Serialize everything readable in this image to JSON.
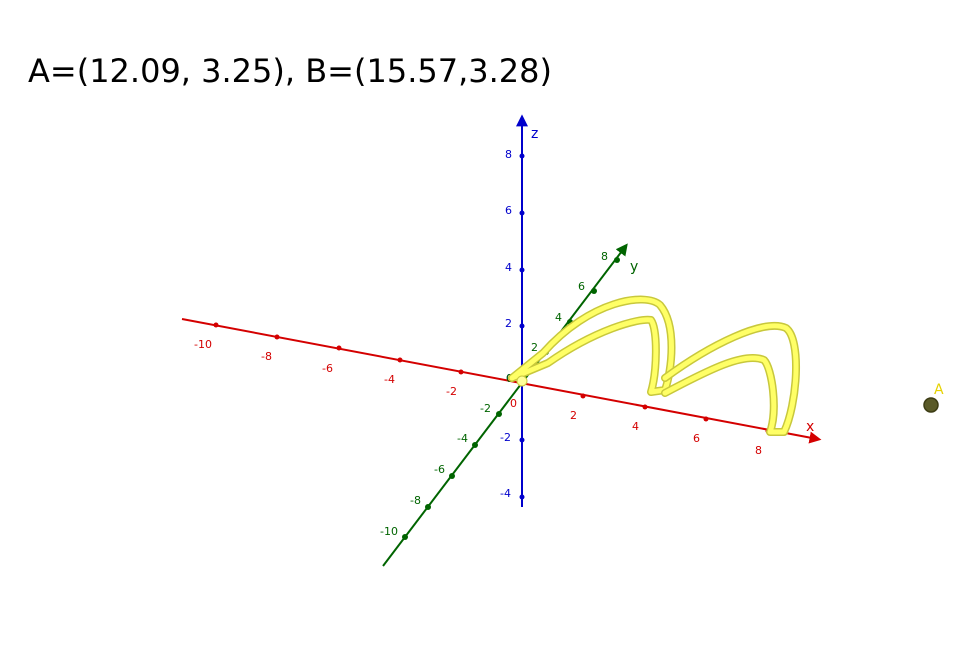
{
  "caption": "A=(12.09, 3.25), B=(15.57,3.28)",
  "colors": {
    "x_axis": "#d40000",
    "y_axis": "#006400",
    "z_axis": "#0000cc",
    "curve": "#ffff66",
    "curve_edge": "#c8c83c",
    "point_a": "#5a5a28",
    "point_a_label": "#e6d200",
    "origin": "#ffff99"
  },
  "axes": {
    "x": {
      "name": "x",
      "ticks": [
        "-10",
        "-8",
        "-6",
        "-4",
        "-2",
        "0",
        "2",
        "4",
        "6",
        "8"
      ]
    },
    "y": {
      "name": "y",
      "ticks": [
        "-10",
        "-8",
        "-6",
        "-4",
        "-2",
        "0",
        "2",
        "4",
        "6",
        "8"
      ]
    },
    "z": {
      "name": "z",
      "ticks": [
        "-4",
        "-2",
        "0",
        "2",
        "4",
        "6",
        "8"
      ]
    }
  },
  "point": {
    "label": "A"
  }
}
